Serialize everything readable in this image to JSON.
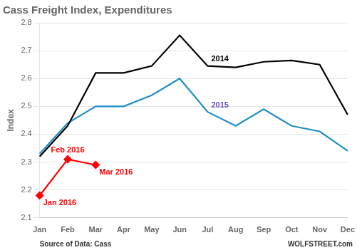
{
  "chart_data": {
    "type": "line",
    "title": "Cass Freight Index, Expenditures",
    "y_label": "Index",
    "categories": [
      "Jan",
      "Feb",
      "Mar",
      "Apr",
      "May",
      "Jun",
      "Jul",
      "Aug",
      "Sep",
      "Oct",
      "Nov",
      "Dec"
    ],
    "series": [
      {
        "color": "#000000",
        "values": [
          2.32,
          2.43,
          2.62,
          2.62,
          2.645,
          2.755,
          2.645,
          2.64,
          2.66,
          2.665,
          2.65,
          2.47
        ]
      },
      {
        "color": "#1e90c8",
        "values": [
          2.33,
          2.44,
          2.5,
          2.5,
          2.54,
          2.6,
          2.48,
          2.43,
          2.49,
          2.43,
          2.41,
          2.34
        ]
      },
      {
        "color": "#ff0000",
        "marker": "diamond",
        "values": [
          2.18,
          2.31,
          2.29,
          null,
          null,
          null,
          null,
          null,
          null,
          null,
          null,
          null
        ]
      }
    ],
    "annotations": [
      {
        "text": "Jan 2016",
        "x": "Jan",
        "y": 2.18,
        "color": "#ff0000"
      },
      {
        "text": "Feb 2016",
        "x": "Feb",
        "y": 2.31,
        "color": "#ff0000"
      },
      {
        "text": "Mar 2016",
        "x": "Mar",
        "y": 2.29,
        "color": "#ff0000"
      },
      {
        "text": "2014",
        "x": "Jul",
        "y": 2.645,
        "color": "#000000"
      },
      {
        "text": "2015",
        "x": "Jul",
        "y": 2.48,
        "color": "#6b4fb8"
      }
    ],
    "footnotes": [
      "Source of Data: Cass",
      "WOLFSTREET.com"
    ],
    "ylim": [
      2.1,
      2.8
    ],
    "yticks": [
      2.1,
      2.2,
      2.3,
      2.4,
      2.5,
      2.6,
      2.7,
      2.8
    ],
    "grid": true
  }
}
